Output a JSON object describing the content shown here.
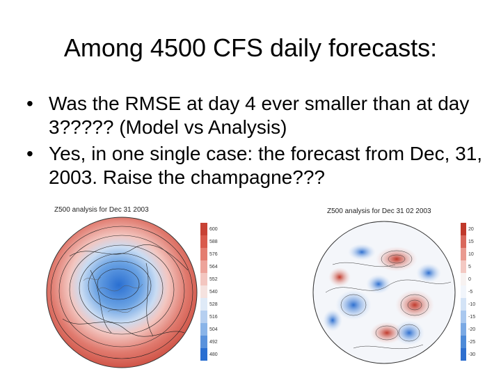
{
  "slide": {
    "title": "Among 4500 CFS daily forecasts:",
    "bullets": [
      "Was the RMSE at day 4 ever smaller than at day 3????? (Model vs Analysis)",
      "Yes, in one single case: the forecast from Dec, 31, 2003. Raise the champagne???"
    ],
    "bullet_glyph": "•"
  },
  "maps": {
    "left": {
      "caption": "Z500 analysis for Dec 31 2003",
      "colorbar": [
        "600",
        "588",
        "576",
        "564",
        "552",
        "540",
        "528",
        "516",
        "504",
        "492",
        "480"
      ]
    },
    "right": {
      "caption": "Z500 analysis for Dec 31 02 2003",
      "colorbar": [
        "20",
        "15",
        "10",
        "5",
        "0",
        "-5",
        "-10",
        "-15",
        "-20",
        "-25",
        "-30"
      ]
    }
  }
}
